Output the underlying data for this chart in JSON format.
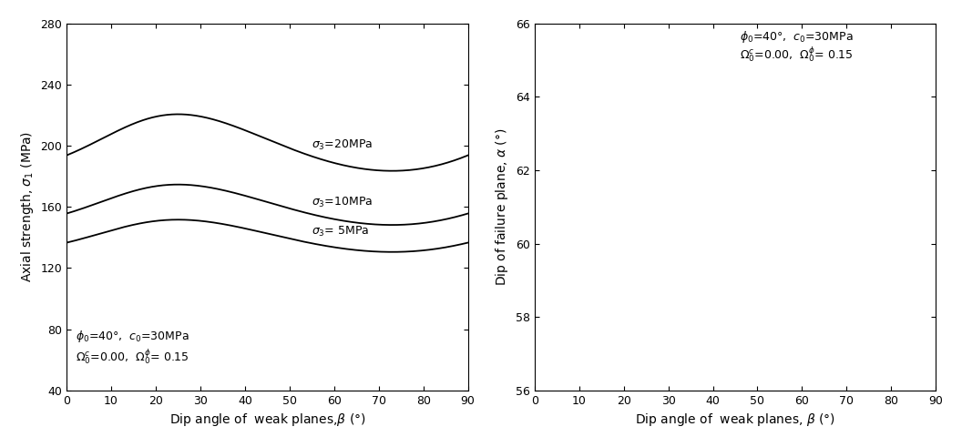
{
  "phi0_deg": 40,
  "c0_MPa": 30,
  "Omega_c": 0.0,
  "Omega_phi": 0.15,
  "sigma3_values": [
    5,
    10,
    20
  ],
  "left_ylim": [
    40,
    280
  ],
  "left_yticks": [
    40,
    80,
    120,
    160,
    200,
    240,
    280
  ],
  "right_ylim": [
    56,
    66
  ],
  "right_yticks": [
    56,
    58,
    60,
    62,
    64,
    66
  ],
  "xticks": [
    0,
    10,
    20,
    30,
    40,
    50,
    60,
    70,
    80,
    90
  ],
  "left_ylabel": "Axial strength, $\\sigma_1$ (MPa)",
  "right_ylabel": "Dip of failure plane, $\\alpha$ (°)",
  "xlabel": "Dip angle of  weak planes,$\\beta$ (°)",
  "bg_color": "white"
}
